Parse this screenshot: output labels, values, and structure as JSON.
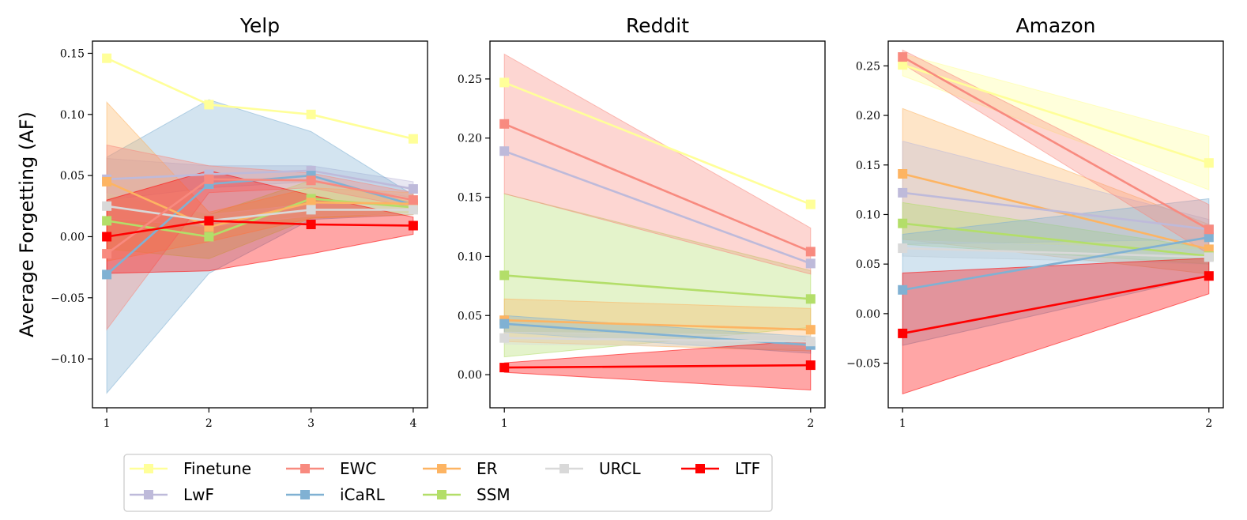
{
  "figure": {
    "ylabel": "Average Forgetting (AF)"
  },
  "legend": [
    {
      "name": "Finetune",
      "color": "#ffff99"
    },
    {
      "name": "EWC",
      "color": "#f88a7f"
    },
    {
      "name": "ER",
      "color": "#fdb462"
    },
    {
      "name": "URCL",
      "color": "#d9d9d9"
    },
    {
      "name": "LTF",
      "color": "#ff0000"
    },
    {
      "name": "LwF",
      "color": "#bebada"
    },
    {
      "name": "iCaRL",
      "color": "#80b1d3"
    },
    {
      "name": "SSM",
      "color": "#b3de69"
    }
  ],
  "chart_data": [
    {
      "type": "line",
      "title": "Yelp",
      "xlabel": "",
      "ylabel": "Average Forgetting (AF)",
      "x": [
        1,
        2,
        3,
        4
      ],
      "xlim": [
        0.86,
        4.14
      ],
      "ylim": [
        -0.14,
        0.16
      ],
      "yticks": [
        -0.1,
        -0.05,
        0.0,
        0.05,
        0.1,
        0.15
      ],
      "ytick_labels": [
        "−0.10",
        "−0.05",
        "0.00",
        "0.05",
        "0.10",
        "0.15"
      ],
      "xtick_labels": [
        "1",
        "2",
        "3",
        "4"
      ],
      "series": [
        {
          "name": "Finetune",
          "color": "#ffff99",
          "values": [
            0.146,
            0.108,
            0.1,
            0.08
          ],
          "lower": null,
          "upper": null
        },
        {
          "name": "LwF",
          "color": "#bebada",
          "values": [
            0.047,
            0.051,
            0.054,
            0.039
          ],
          "lower": [
            0.03,
            0.04,
            0.045,
            0.032
          ],
          "upper": [
            0.064,
            0.058,
            0.058,
            0.045
          ]
        },
        {
          "name": "iCaRL",
          "color": "#80b1d3",
          "values": [
            -0.031,
            0.043,
            0.05,
            0.026
          ],
          "lower": [
            -0.128,
            -0.03,
            0.014,
            0.018
          ],
          "upper": [
            0.065,
            0.112,
            0.086,
            0.034
          ]
        },
        {
          "name": "SSM",
          "color": "#b3de69",
          "values": [
            0.013,
            0.0,
            0.031,
            0.024
          ],
          "lower": [
            -0.01,
            -0.018,
            0.015,
            0.02
          ],
          "upper": [
            0.035,
            0.018,
            0.046,
            0.028
          ]
        },
        {
          "name": "ER",
          "color": "#fdb462",
          "values": [
            0.045,
            0.008,
            0.028,
            0.027
          ],
          "lower": [
            -0.02,
            -0.004,
            0.015,
            0.018
          ],
          "upper": [
            0.11,
            0.02,
            0.04,
            0.036
          ]
        },
        {
          "name": "URCL",
          "color": "#d9d9d9",
          "values": [
            0.025,
            0.013,
            0.022,
            0.022
          ],
          "lower": [
            0.015,
            0.008,
            0.017,
            0.019
          ],
          "upper": [
            0.035,
            0.018,
            0.027,
            0.025
          ]
        },
        {
          "name": "EWC",
          "color": "#f88a7f",
          "values": [
            -0.014,
            0.047,
            0.046,
            0.03
          ],
          "lower": [
            -0.076,
            0.036,
            0.04,
            0.024
          ],
          "upper": [
            0.075,
            0.058,
            0.052,
            0.036
          ]
        },
        {
          "name": "LTF",
          "color": "#ff0000",
          "values": [
            0.0,
            0.013,
            0.01,
            0.009
          ],
          "lower": [
            -0.03,
            -0.028,
            -0.014,
            0.002
          ],
          "upper": [
            0.03,
            0.054,
            0.034,
            0.016
          ]
        }
      ]
    },
    {
      "type": "line",
      "title": "Reddit",
      "xlabel": "",
      "ylabel": "",
      "x": [
        1,
        2
      ],
      "xlim": [
        0.953,
        2.047
      ],
      "ylim": [
        -0.028,
        0.282
      ],
      "yticks": [
        0.0,
        0.05,
        0.1,
        0.15,
        0.2,
        0.25
      ],
      "ytick_labels": [
        "0.00",
        "0.05",
        "0.10",
        "0.15",
        "0.20",
        "0.25"
      ],
      "xtick_labels": [
        "1",
        "2"
      ],
      "series": [
        {
          "name": "Finetune",
          "color": "#ffff99",
          "values": [
            0.247,
            0.144
          ],
          "lower": null,
          "upper": null
        },
        {
          "name": "LwF",
          "color": "#bebada",
          "values": [
            0.189,
            0.094
          ],
          "lower": null,
          "upper": null
        },
        {
          "name": "SSM",
          "color": "#b3de69",
          "values": [
            0.084,
            0.064
          ],
          "lower": [
            0.015,
            0.04
          ],
          "upper": [
            0.153,
            0.088
          ]
        },
        {
          "name": "ER",
          "color": "#fdb462",
          "values": [
            0.046,
            0.038
          ],
          "lower": [
            0.028,
            0.02
          ],
          "upper": [
            0.064,
            0.056
          ]
        },
        {
          "name": "iCaRL",
          "color": "#80b1d3",
          "values": [
            0.043,
            0.025
          ],
          "lower": [
            0.036,
            0.018
          ],
          "upper": [
            0.05,
            0.032
          ]
        },
        {
          "name": "URCL",
          "color": "#d9d9d9",
          "values": [
            0.031,
            0.028
          ],
          "lower": [
            0.026,
            0.023
          ],
          "upper": [
            0.036,
            0.033
          ]
        },
        {
          "name": "EWC",
          "color": "#f88a7f",
          "values": [
            0.212,
            0.104
          ],
          "lower": [
            0.153,
            0.085
          ],
          "upper": [
            0.271,
            0.124
          ]
        },
        {
          "name": "LTF",
          "color": "#ff0000",
          "values": [
            0.006,
            0.008
          ],
          "lower": [
            0.002,
            -0.013
          ],
          "upper": [
            0.01,
            0.029
          ]
        }
      ]
    },
    {
      "type": "line",
      "title": "Amazon",
      "xlabel": "",
      "ylabel": "",
      "x": [
        1,
        2
      ],
      "xlim": [
        0.953,
        2.047
      ],
      "ylim": [
        -0.095,
        0.275
      ],
      "yticks": [
        -0.05,
        0.0,
        0.05,
        0.1,
        0.15,
        0.2,
        0.25
      ],
      "ytick_labels": [
        "−0.05",
        "0.00",
        "0.05",
        "0.10",
        "0.15",
        "0.20",
        "0.25"
      ],
      "xtick_labels": [
        "1",
        "2"
      ],
      "series": [
        {
          "name": "Finetune",
          "color": "#ffff99",
          "values": [
            0.251,
            0.152
          ],
          "lower": [
            0.24,
            0.125
          ],
          "upper": [
            0.262,
            0.179
          ]
        },
        {
          "name": "ER",
          "color": "#fdb462",
          "values": [
            0.141,
            0.065
          ],
          "lower": [
            0.075,
            0.04
          ],
          "upper": [
            0.207,
            0.09
          ]
        },
        {
          "name": "LwF",
          "color": "#bebada",
          "values": [
            0.122,
            0.085
          ],
          "lower": [
            0.07,
            0.075
          ],
          "upper": [
            0.174,
            0.095
          ]
        },
        {
          "name": "SSM",
          "color": "#b3de69",
          "values": [
            0.091,
            0.058
          ],
          "lower": [
            0.07,
            0.05
          ],
          "upper": [
            0.112,
            0.066
          ]
        },
        {
          "name": "URCL",
          "color": "#d9d9d9",
          "values": [
            0.066,
            0.057
          ],
          "lower": [
            0.058,
            0.05
          ],
          "upper": [
            0.074,
            0.064
          ]
        },
        {
          "name": "iCaRL",
          "color": "#80b1d3",
          "values": [
            0.024,
            0.077
          ],
          "lower": [
            -0.032,
            0.038
          ],
          "upper": [
            0.08,
            0.116
          ]
        },
        {
          "name": "EWC",
          "color": "#f88a7f",
          "values": [
            0.259,
            0.085
          ],
          "lower": [
            0.252,
            0.06
          ],
          "upper": [
            0.266,
            0.11
          ]
        },
        {
          "name": "LTF",
          "color": "#ff0000",
          "values": [
            -0.02,
            0.038
          ],
          "lower": [
            -0.081,
            0.02
          ],
          "upper": [
            0.041,
            0.056
          ]
        }
      ]
    }
  ]
}
